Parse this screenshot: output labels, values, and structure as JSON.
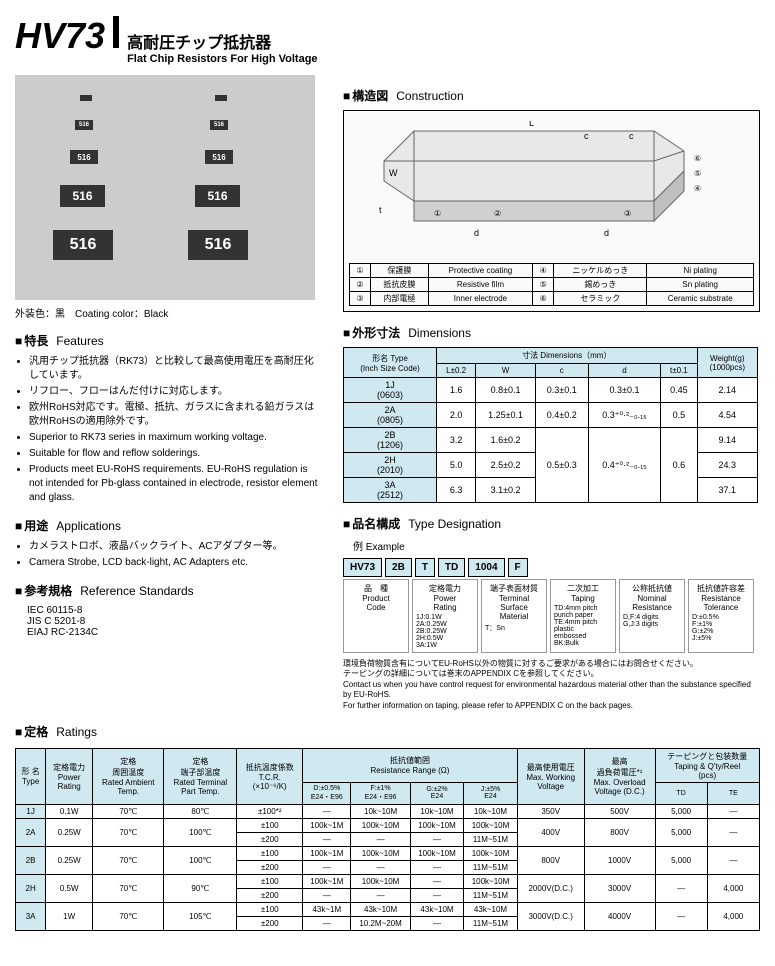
{
  "header": {
    "code": "HV73",
    "jp": "高耐圧チップ抵抗器",
    "en": "Flat Chip Resistors For High Voltage"
  },
  "coating": {
    "jp": "外装色：黒",
    "en": "Coating color：Black"
  },
  "sections": {
    "features": {
      "jp": "特長",
      "en": "Features"
    },
    "apps": {
      "jp": "用途",
      "en": "Applications"
    },
    "refs": {
      "jp": "参考規格",
      "en": "Reference Standards"
    },
    "construct": {
      "jp": "構造図",
      "en": "Construction"
    },
    "dims": {
      "jp": "外形寸法",
      "en": "Dimensions"
    },
    "typedes": {
      "jp": "品名構成",
      "en": "Type Designation"
    },
    "ratings": {
      "jp": "定格",
      "en": "Ratings"
    }
  },
  "features": [
    "汎用チップ抵抗器（RK73）と比較して最高使用電圧を高耐圧化しています。",
    "リフロー、フローはんだ付けに対応します。",
    "欧州RoHS対応です。電極、抵抗、ガラスに含まれる鉛ガラスは欧州RoHSの適用除外です。",
    "Superior to RK73 series in maximum working voltage.",
    "Suitable for flow and reflow solderings.",
    "Products meet EU-RoHS requirements. EU-RoHS regulation is not intended for Pb-glass contained in electrode, resistor element and glass."
  ],
  "apps": [
    "カメラストロボ、液晶バックライト、ACアダプター等。",
    "Camera Strobe, LCD back-light, AC Adapters etc."
  ],
  "refs": [
    "IEC 60115-8",
    "JIS C 5201-8",
    "EIAJ RC-2134C"
  ],
  "construct_parts": [
    [
      "①",
      "保護膜",
      "Protective coating",
      "④",
      "ニッケルめっき",
      "Ni plating"
    ],
    [
      "②",
      "抵抗皮膜",
      "Resistive film",
      "⑤",
      "錫めっき",
      "Sn plating"
    ],
    [
      "③",
      "内部電極",
      "Inner electrode",
      "⑥",
      "セラミック",
      "Ceramic substrate"
    ]
  ],
  "dims_hdr": {
    "type": "形名 Type",
    "inch": "(Inch Size Code)",
    "dims": "寸法  Dimensions（mm）",
    "weight": "Weight(g)",
    "wpcs": "(1000pcs)",
    "L": "L±0.2",
    "W": "W",
    "c": "c",
    "d": "d",
    "t": "t±0.1"
  },
  "dims_rows": [
    {
      "t": "1J",
      "i": "(0603)",
      "L": "1.6",
      "W": "0.8±0.1",
      "c": "0.3±0.1",
      "d": "0.3±0.1",
      "tt": "0.45",
      "wt": "2.14"
    },
    {
      "t": "2A",
      "i": "(0805)",
      "L": "2.0",
      "W": "1.25±0.1",
      "c": "0.4±0.2",
      "d": "0.3⁺⁰·²₋₀.₁₅",
      "tt": "0.5",
      "wt": "4.54"
    },
    {
      "t": "2B",
      "i": "(1206)",
      "L": "3.2",
      "W": "1.6±0.2",
      "c": "",
      "d": "",
      "tt": "",
      "wt": "9.14"
    },
    {
      "t": "2H",
      "i": "(2010)",
      "L": "5.0",
      "W": "2.5±0.2",
      "c": "0.5±0.3",
      "d": "0.4⁺⁰·²₋₀.₁₅",
      "tt": "0.6",
      "wt": "24.3"
    },
    {
      "t": "3A",
      "i": "(2512)",
      "L": "6.3",
      "W": "3.1±0.2",
      "c": "",
      "d": "",
      "tt": "",
      "wt": "37.1"
    }
  ],
  "type_ex": {
    "label": "例  Example"
  },
  "type_boxes": [
    "HV73",
    "2B",
    "T",
    "TD",
    "1004",
    "F"
  ],
  "type_desc": [
    {
      "t": "品　種\nProduct\nCode",
      "d": ""
    },
    {
      "t": "定格電力\nPower\nRating",
      "d": "1J:0.1W\n2A:0.25W\n2B:0.25W\n2H:0.5W\n3A:1W"
    },
    {
      "t": "端子表面材質\nTerminal\nSurface Material",
      "d": "T：Sn"
    },
    {
      "t": "二次加工\nTaping",
      "d": "TD:4mm pitch\npunch paper\nTE:4mm pitch\nplastic\nembossed\nBK:Bulk"
    },
    {
      "t": "公称抵抗値\nNominal\nResistance",
      "d": "D,F:4 digits\nG,J:3 digits"
    },
    {
      "t": "抵抗値許容差\nResistance\nTolerance",
      "d": "D:±0.5%\nF:±1%\nG:±2%\nJ:±5%"
    }
  ],
  "note1": "環境負荷物質含有についてEU-RoHS以外の物質に対するご要求がある場合にはお問合せください。\nテーピングの詳細については巻末のAPPENDIX Cを参照してください。\nContact us when you have control request for environmental hazardous material other than the substance specified by EU-RoHS.\nFor further information on taping, please refer to APPENDIX C on the back pages.",
  "ratings_hdr": {
    "type": "形 名\nType",
    "power": "定格電力\nPower\nRating",
    "amb": "定格\n周囲温度\nRated Ambient\nTemp.",
    "term": "定格\n端子部温度\nRated Terminal\nPart Temp.",
    "tcr": "抵抗温度係数\nT.C.R.\n(×10⁻⁶/K)",
    "range": "抵抗値範囲\nResistance Range (Ω)",
    "d": "D:±0.5%\nE24・E96",
    "f": "F:±1%\nE24・E96",
    "g": "G:±2%\nE24",
    "j": "J:±5%\nE24",
    "maxv": "最高使用電圧\nMax. Working\nVoltage",
    "maxov": "最高\n過負荷電圧*¹\nMax. Overload\nVoltage (D.C.)",
    "tape": "テーピングと包装数量\nTaping & Q'ty/Reel\n(pcs)",
    "td": "TD",
    "te": "TE"
  },
  "ratings_rows": [
    {
      "type": "1J",
      "pw": "0.1W",
      "amb": "70℃",
      "term": "80℃",
      "tcr": "±100*²",
      "d": "—",
      "f": "10k~10M",
      "g": "10k~10M",
      "j": "10k~10M",
      "mv": "350V",
      "mov": "500V",
      "td": "5,000",
      "te": "—"
    },
    {
      "type": "2A",
      "pw": "0.25W",
      "amb": "70℃",
      "term": "100℃",
      "tcr": "±100",
      "d": "100k~1M",
      "f": "100k~10M",
      "g": "100k~10M",
      "j": "100k~10M",
      "mv": "400V",
      "mov": "800V",
      "td": "5,000",
      "te": "—"
    },
    {
      "type": "",
      "pw": "",
      "amb": "",
      "term": "",
      "tcr": "±200",
      "d": "—",
      "f": "—",
      "g": "—",
      "j": "11M~51M",
      "mv": "",
      "mov": "",
      "td": "",
      "te": ""
    },
    {
      "type": "2B",
      "pw": "0.25W",
      "amb": "70℃",
      "term": "100℃",
      "tcr": "±100",
      "d": "100k~1M",
      "f": "100k~10M",
      "g": "100k~10M",
      "j": "100k~10M",
      "mv": "800V",
      "mov": "1000V",
      "td": "5,000",
      "te": "—"
    },
    {
      "type": "",
      "pw": "",
      "amb": "",
      "term": "",
      "tcr": "±200",
      "d": "—",
      "f": "—",
      "g": "—",
      "j": "11M~51M",
      "mv": "",
      "mov": "",
      "td": "",
      "te": ""
    },
    {
      "type": "2H",
      "pw": "0.5W",
      "amb": "70℃",
      "term": "90℃",
      "tcr": "±100",
      "d": "100k~1M",
      "f": "100k~10M",
      "g": "—",
      "j": "100k~10M",
      "mv": "2000V(D.C.)",
      "mov": "3000V",
      "td": "—",
      "te": "4,000"
    },
    {
      "type": "",
      "pw": "",
      "amb": "",
      "term": "",
      "tcr": "±200",
      "d": "—",
      "f": "—",
      "g": "—",
      "j": "11M~51M",
      "mv": "",
      "mov": "",
      "td": "",
      "te": ""
    },
    {
      "type": "3A",
      "pw": "1W",
      "amb": "70℃",
      "term": "105℃",
      "tcr": "±100",
      "d": "43k~1M",
      "f": "43k~10M",
      "g": "43k~10M",
      "j": "43k~10M",
      "mv": "3000V(D.C.)",
      "mov": "4000V",
      "td": "—",
      "te": "4,000"
    },
    {
      "type": "",
      "pw": "",
      "amb": "",
      "term": "",
      "tcr": "±200",
      "d": "—",
      "f": "10.2M~20M",
      "g": "—",
      "j": "11M~51M",
      "mv": "",
      "mov": "",
      "td": "",
      "te": ""
    }
  ],
  "chip_label": "516"
}
